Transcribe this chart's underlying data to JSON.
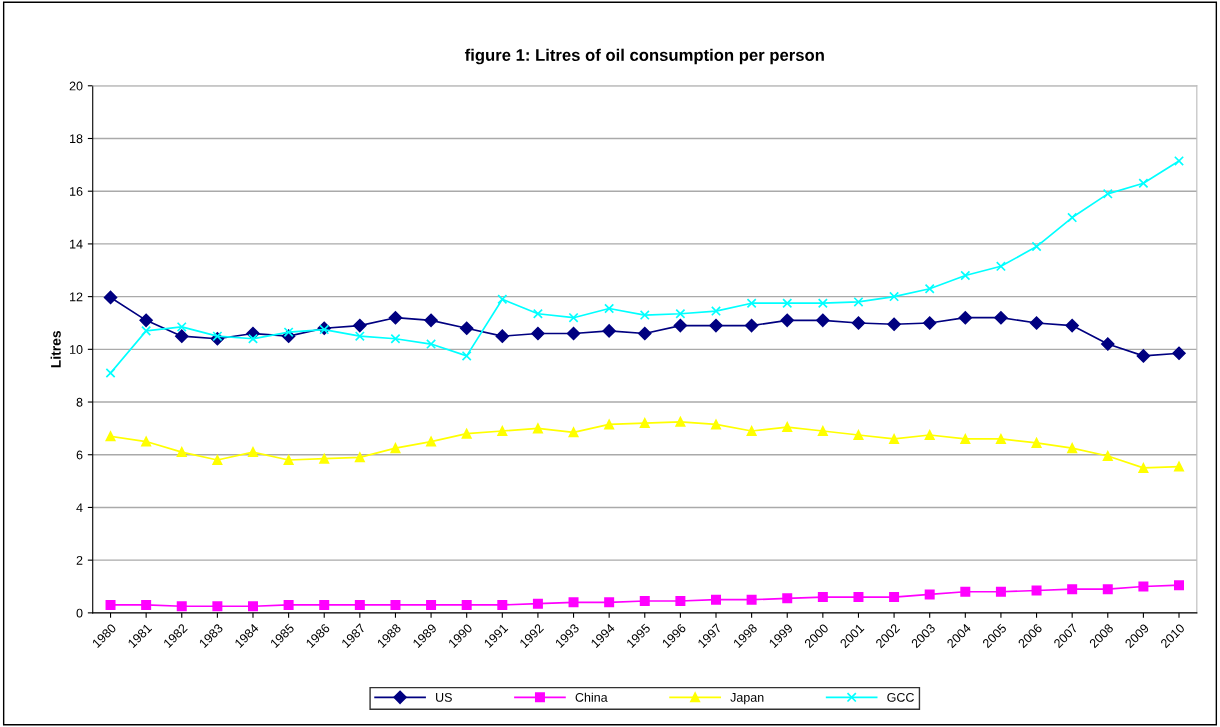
{
  "chart_data": {
    "type": "line",
    "title": "figure 1: Litres of oil consumption per person",
    "ylabel": "Litres",
    "categories": [
      "1980",
      "1981",
      "1982",
      "1983",
      "1984",
      "1985",
      "1986",
      "1987",
      "1988",
      "1989",
      "1990",
      "1991",
      "1992",
      "1993",
      "1994",
      "1995",
      "1996",
      "1997",
      "1998",
      "1999",
      "2000",
      "2001",
      "2002",
      "2003",
      "2004",
      "2005",
      "2006",
      "2007",
      "2008",
      "2009",
      "2010"
    ],
    "series": [
      {
        "name": "US",
        "color": "#000080",
        "marker": "diamond",
        "values": [
          11.97,
          11.1,
          10.5,
          10.4,
          10.6,
          10.5,
          10.8,
          10.9,
          11.2,
          11.1,
          10.8,
          10.5,
          10.6,
          10.6,
          10.7,
          10.6,
          10.9,
          10.9,
          10.9,
          11.1,
          11.1,
          11.0,
          10.95,
          11.0,
          11.2,
          11.2,
          11.0,
          10.9,
          10.2,
          9.75,
          9.85
        ]
      },
      {
        "name": "China",
        "color": "#ff00ff",
        "marker": "square",
        "values": [
          0.3,
          0.3,
          0.25,
          0.25,
          0.25,
          0.3,
          0.3,
          0.3,
          0.3,
          0.3,
          0.3,
          0.3,
          0.35,
          0.4,
          0.4,
          0.45,
          0.45,
          0.5,
          0.5,
          0.55,
          0.6,
          0.6,
          0.6,
          0.7,
          0.8,
          0.8,
          0.85,
          0.9,
          0.9,
          1.0,
          1.05
        ]
      },
      {
        "name": "Japan",
        "color": "#ffff00",
        "marker": "triangle",
        "values": [
          6.7,
          6.5,
          6.1,
          5.8,
          6.1,
          5.8,
          5.85,
          5.9,
          6.25,
          6.5,
          6.8,
          6.9,
          7.0,
          6.85,
          7.15,
          7.2,
          7.25,
          7.15,
          6.9,
          7.05,
          6.9,
          6.75,
          6.6,
          6.75,
          6.6,
          6.6,
          6.45,
          6.25,
          5.95,
          5.5,
          5.55
        ]
      },
      {
        "name": "GCC",
        "color": "#00ffff",
        "marker": "cross",
        "values": [
          9.1,
          10.7,
          10.85,
          10.5,
          10.4,
          10.65,
          10.75,
          10.5,
          10.4,
          10.2,
          9.75,
          11.9,
          11.35,
          11.2,
          11.55,
          11.3,
          11.35,
          11.45,
          11.75,
          11.75,
          11.75,
          11.8,
          12.0,
          12.3,
          12.8,
          13.15,
          13.9,
          15.0,
          15.9,
          16.3,
          17.15
        ]
      }
    ],
    "ylim": [
      0,
      20
    ],
    "yticks": [
      0,
      2,
      4,
      6,
      8,
      10,
      12,
      14,
      16,
      18,
      20
    ],
    "grid": "y",
    "legend": "bottom"
  }
}
